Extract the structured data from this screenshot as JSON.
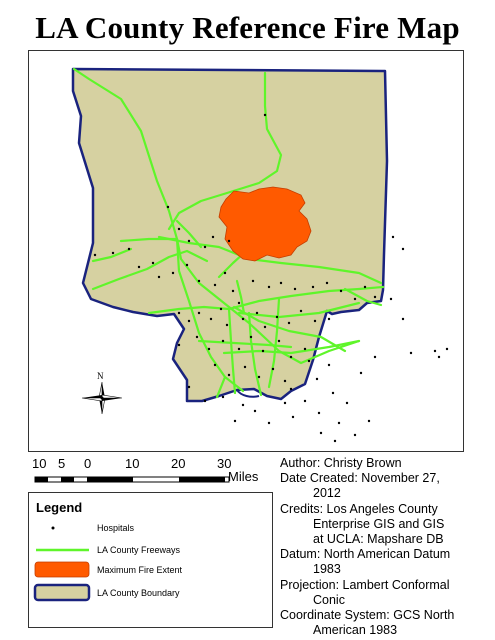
{
  "title": "LA County Reference Fire Map",
  "colors": {
    "county_fill": "#d6d1a1",
    "boundary": "#1a237e",
    "freeway": "#5ff52a",
    "fire": "#ff5a00",
    "hospital": "#000000"
  },
  "compass": {
    "north_label": "N"
  },
  "scale_bar": {
    "ticks": [
      "10",
      "5",
      "0",
      "10",
      "20",
      "30"
    ],
    "unit": "Miles"
  },
  "legend": {
    "heading": "Legend",
    "items": [
      {
        "label": "Hospitals",
        "symbol": "dot"
      },
      {
        "label": "LA County Freeways",
        "symbol": "line"
      },
      {
        "label": "Maximum Fire Extent",
        "symbol": "fire-patch"
      },
      {
        "label": "LA County Boundary",
        "symbol": "boundary-patch"
      }
    ]
  },
  "info": {
    "author": "Author: Christy Brown",
    "date_line1": "Date Created: November 27,",
    "date_line2": "2012",
    "credits_line1": "Credits: Los Angeles County",
    "credits_line2": "Enterprise GIS and GIS",
    "credits_line3": "at UCLA: Mapshare DB",
    "datum_line1": "Datum: North American Datum",
    "datum_line2": "1983",
    "projection_line1": "Projection: Lambert Conformal",
    "projection_line2": "Conic",
    "coord_line1": "Coordinate System: GCS North",
    "coord_line2": "American 1983"
  }
}
